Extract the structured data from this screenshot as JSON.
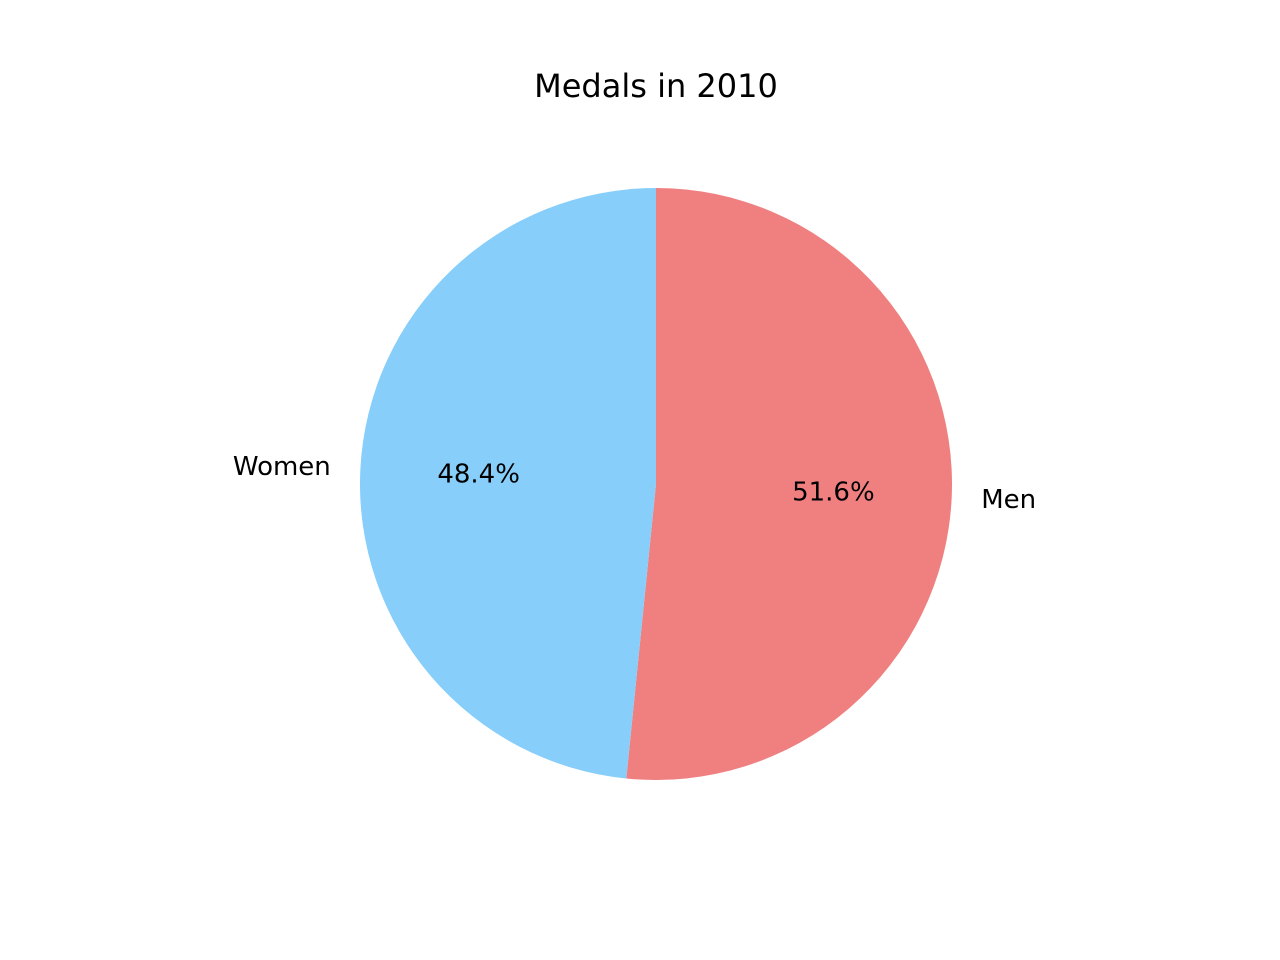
{
  "chart_data": {
    "type": "pie",
    "title": "Medals in 2010",
    "labels": [
      "Men",
      "Women"
    ],
    "values": [
      51.6,
      48.4
    ],
    "autopct": [
      "51.6%",
      "48.4%"
    ],
    "colors": [
      "#f08080",
      "#87cefa"
    ],
    "start_angle_deg": 90,
    "direction": "clockwise"
  }
}
